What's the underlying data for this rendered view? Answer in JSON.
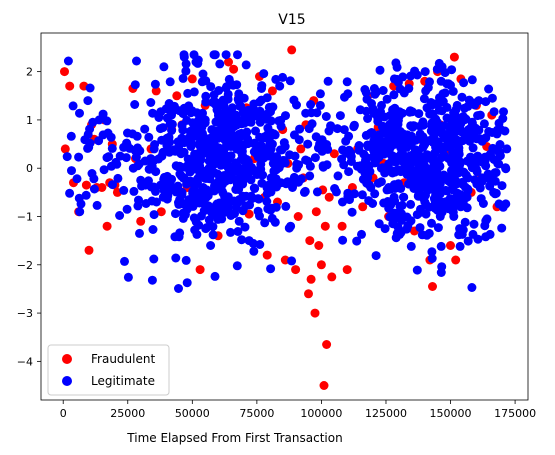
{
  "chart_data": {
    "type": "scatter",
    "title": "V15",
    "xlabel": "Time Elapsed From First Transaction",
    "ylabel": "",
    "xlim": [
      -8600,
      180000
    ],
    "ylim": [
      -4.8,
      2.8
    ],
    "grid": false,
    "x_ticks": [
      0,
      25000,
      50000,
      75000,
      100000,
      125000,
      150000,
      175000
    ],
    "x_tick_labels": [
      "0",
      "25000",
      "50000",
      "75000",
      "100000",
      "125000",
      "150000",
      "175000"
    ],
    "y_ticks": [
      -4,
      -3,
      -2,
      -1,
      0,
      1,
      2
    ],
    "y_tick_labels": [
      "−4",
      "−3",
      "−2",
      "−1",
      "0",
      "1",
      "2"
    ],
    "legend": {
      "position": "lower-left"
    },
    "series": [
      {
        "name": "Fraudulent",
        "color": "#ff0000",
        "points": [
          [
            500,
            2.0
          ],
          [
            800,
            0.4
          ],
          [
            2500,
            1.7
          ],
          [
            4000,
            -0.3
          ],
          [
            6000,
            -0.9
          ],
          [
            8000,
            1.7
          ],
          [
            9000,
            -0.35
          ],
          [
            10000,
            -1.7
          ],
          [
            11000,
            0.9
          ],
          [
            12000,
            0.6
          ],
          [
            13000,
            -0.4
          ],
          [
            15000,
            -0.4
          ],
          [
            16000,
            1.0
          ],
          [
            17000,
            -1.2
          ],
          [
            18000,
            -0.3
          ],
          [
            19000,
            0.5
          ],
          [
            20000,
            -0.35
          ],
          [
            21000,
            -0.5
          ],
          [
            27000,
            1.65
          ],
          [
            28000,
            0.2
          ],
          [
            30000,
            -1.1
          ],
          [
            34000,
            0.4
          ],
          [
            36000,
            1.6
          ],
          [
            38000,
            -0.9
          ],
          [
            40000,
            -0.5
          ],
          [
            42000,
            0.8
          ],
          [
            44000,
            1.5
          ],
          [
            46000,
            0.9
          ],
          [
            48000,
            -0.4
          ],
          [
            50000,
            1.85
          ],
          [
            52000,
            0.3
          ],
          [
            53000,
            -2.1
          ],
          [
            55000,
            1.3
          ],
          [
            58000,
            -0.9
          ],
          [
            60000,
            -1.4
          ],
          [
            62000,
            0.7
          ],
          [
            64000,
            2.2
          ],
          [
            66000,
            2.05
          ],
          [
            68000,
            1.5
          ],
          [
            70000,
            -0.1
          ],
          [
            71000,
            1.25
          ],
          [
            72000,
            -0.95
          ],
          [
            74000,
            0.2
          ],
          [
            76000,
            1.9
          ],
          [
            78000,
            -0.6
          ],
          [
            79000,
            -1.8
          ],
          [
            81000,
            1.6
          ],
          [
            83000,
            -0.7
          ],
          [
            85000,
            0.8
          ],
          [
            86000,
            -1.9
          ],
          [
            87000,
            0.1
          ],
          [
            88500,
            2.45
          ],
          [
            89000,
            -0.35
          ],
          [
            90000,
            -2.1
          ],
          [
            91000,
            -1.0
          ],
          [
            92000,
            0.4
          ],
          [
            93000,
            -0.2
          ],
          [
            94000,
            0.9
          ],
          [
            95000,
            -2.6
          ],
          [
            95500,
            -1.5
          ],
          [
            96000,
            -2.3
          ],
          [
            97000,
            1.4
          ],
          [
            97500,
            -3.0
          ],
          [
            98000,
            -0.9
          ],
          [
            99000,
            -1.6
          ],
          [
            100000,
            -2.0
          ],
          [
            100500,
            -0.45
          ],
          [
            101000,
            -4.5
          ],
          [
            101500,
            -1.2
          ],
          [
            102000,
            -3.65
          ],
          [
            103000,
            -0.6
          ],
          [
            104000,
            -2.25
          ],
          [
            105000,
            0.3
          ],
          [
            108000,
            -1.2
          ],
          [
            110000,
            -2.1
          ],
          [
            112000,
            -0.4
          ],
          [
            114000,
            0.4
          ],
          [
            116000,
            -0.8
          ],
          [
            118000,
            1.5
          ],
          [
            120000,
            -0.2
          ],
          [
            122000,
            0.85
          ],
          [
            124000,
            0.1
          ],
          [
            126000,
            -1.0
          ],
          [
            128000,
            1.7
          ],
          [
            130000,
            0.5
          ],
          [
            132000,
            -0.3
          ],
          [
            134000,
            1.75
          ],
          [
            136000,
            -1.3
          ],
          [
            138000,
            0.6
          ],
          [
            140000,
            1.8
          ],
          [
            142000,
            -1.9
          ],
          [
            143000,
            -2.45
          ],
          [
            145000,
            2.0
          ],
          [
            146000,
            0.9
          ],
          [
            148000,
            0.3
          ],
          [
            150000,
            -1.6
          ],
          [
            151500,
            2.3
          ],
          [
            152000,
            -1.9
          ],
          [
            154000,
            1.85
          ],
          [
            156000,
            0.7
          ],
          [
            158000,
            -0.5
          ],
          [
            160000,
            1.3
          ],
          [
            162000,
            -0.2
          ],
          [
            164000,
            0.45
          ],
          [
            166000,
            1.1
          ],
          [
            168000,
            -0.8
          ]
        ]
      },
      {
        "name": "Legitimate",
        "color": "#0000ff",
        "points": []
      }
    ]
  }
}
